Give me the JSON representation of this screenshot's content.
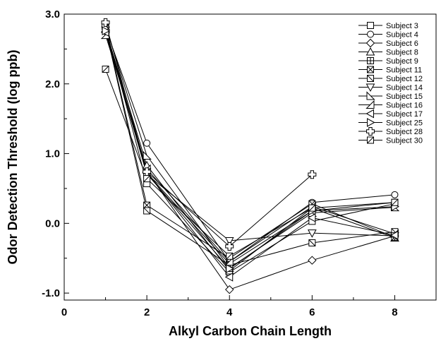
{
  "chart_data": {
    "type": "line",
    "xlabel": "Alkyl Carbon Chain Length",
    "ylabel": "Odor Detection Threshold (log ppb)",
    "xlim": [
      0,
      9
    ],
    "ylim": [
      -1.1,
      3.0
    ],
    "xticks": [
      0,
      2,
      4,
      6,
      8
    ],
    "xtick_labels": [
      "0",
      "2",
      "4",
      "6",
      "8"
    ],
    "yticks": [
      -1.0,
      0.0,
      1.0,
      2.0,
      3.0
    ],
    "ytick_labels": [
      "-1.0",
      "0.0",
      "1.0",
      "2.0",
      "3.0"
    ],
    "grid": false,
    "legend_position": "top-right",
    "series": [
      {
        "name": "Subject 3",
        "marker": "square",
        "x": [
          1,
          2,
          4,
          6,
          8
        ],
        "y": [
          2.82,
          0.57,
          -0.7,
          0.03,
          0.28
        ]
      },
      {
        "name": "Subject 4",
        "marker": "circle",
        "x": [
          1,
          2,
          4,
          6,
          8
        ],
        "y": [
          2.8,
          1.15,
          -0.55,
          0.3,
          0.41
        ]
      },
      {
        "name": "Subject 6",
        "marker": "diamond",
        "x": [
          1,
          2,
          4,
          6,
          8
        ],
        "y": [
          2.75,
          0.75,
          -0.95,
          -0.53,
          -0.18
        ]
      },
      {
        "name": "Subject 8",
        "marker": "triangle-up",
        "x": [
          1,
          2,
          4,
          6,
          8
        ],
        "y": [
          2.78,
          0.83,
          -0.68,
          0.22,
          -0.21
        ]
      },
      {
        "name": "Subject 9",
        "marker": "square-plus",
        "x": [
          1,
          2,
          4,
          6,
          8
        ],
        "y": [
          2.8,
          0.72,
          -0.58,
          0.18,
          0.3
        ]
      },
      {
        "name": "Subject 11",
        "marker": "square-x",
        "x": [
          1,
          2,
          4,
          6,
          8
        ],
        "y": [
          2.81,
          0.26,
          -0.5,
          0.28,
          -0.2
        ]
      },
      {
        "name": "Subject 12",
        "marker": "square-backslash",
        "x": [
          1,
          2,
          4,
          6,
          8
        ],
        "y": [
          2.79,
          0.18,
          -0.6,
          -0.28,
          -0.12
        ]
      },
      {
        "name": "Subject 14",
        "marker": "triangle-down",
        "x": [
          1,
          2,
          4,
          6,
          8
        ],
        "y": [
          2.77,
          0.7,
          -0.25,
          -0.14,
          -0.18
        ]
      },
      {
        "name": "Subject 15",
        "marker": "triangle-right-up",
        "x": [
          1,
          2,
          4,
          6,
          8
        ],
        "y": [
          2.83,
          0.97,
          -0.64,
          0.15,
          0.23
        ]
      },
      {
        "name": "Subject 16",
        "marker": "triangle-left-up",
        "x": [
          1,
          2,
          4,
          6,
          8
        ],
        "y": [
          2.7,
          0.78,
          -0.55,
          0.24,
          -0.15
        ]
      },
      {
        "name": "Subject 17",
        "marker": "triangle-left",
        "x": [
          1,
          2,
          4,
          6,
          8
        ],
        "y": [
          2.74,
          0.73,
          -0.77,
          0.08,
          -0.17
        ]
      },
      {
        "name": "Subject 25",
        "marker": "triangle-right",
        "x": [
          1,
          2,
          4,
          6,
          8
        ],
        "y": [
          2.76,
          0.71,
          -0.65,
          0.18,
          0.24
        ]
      },
      {
        "name": "Subject 28",
        "marker": "cross",
        "x": [
          1,
          2,
          4,
          6
        ],
        "y": [
          2.88,
          0.74,
          -0.33,
          0.7
        ]
      },
      {
        "name": "Subject 30",
        "marker": "square-slash",
        "x": [
          1,
          2,
          4,
          6,
          8
        ],
        "y": [
          2.21,
          0.64,
          -0.47,
          0.22,
          0.3
        ]
      }
    ]
  }
}
